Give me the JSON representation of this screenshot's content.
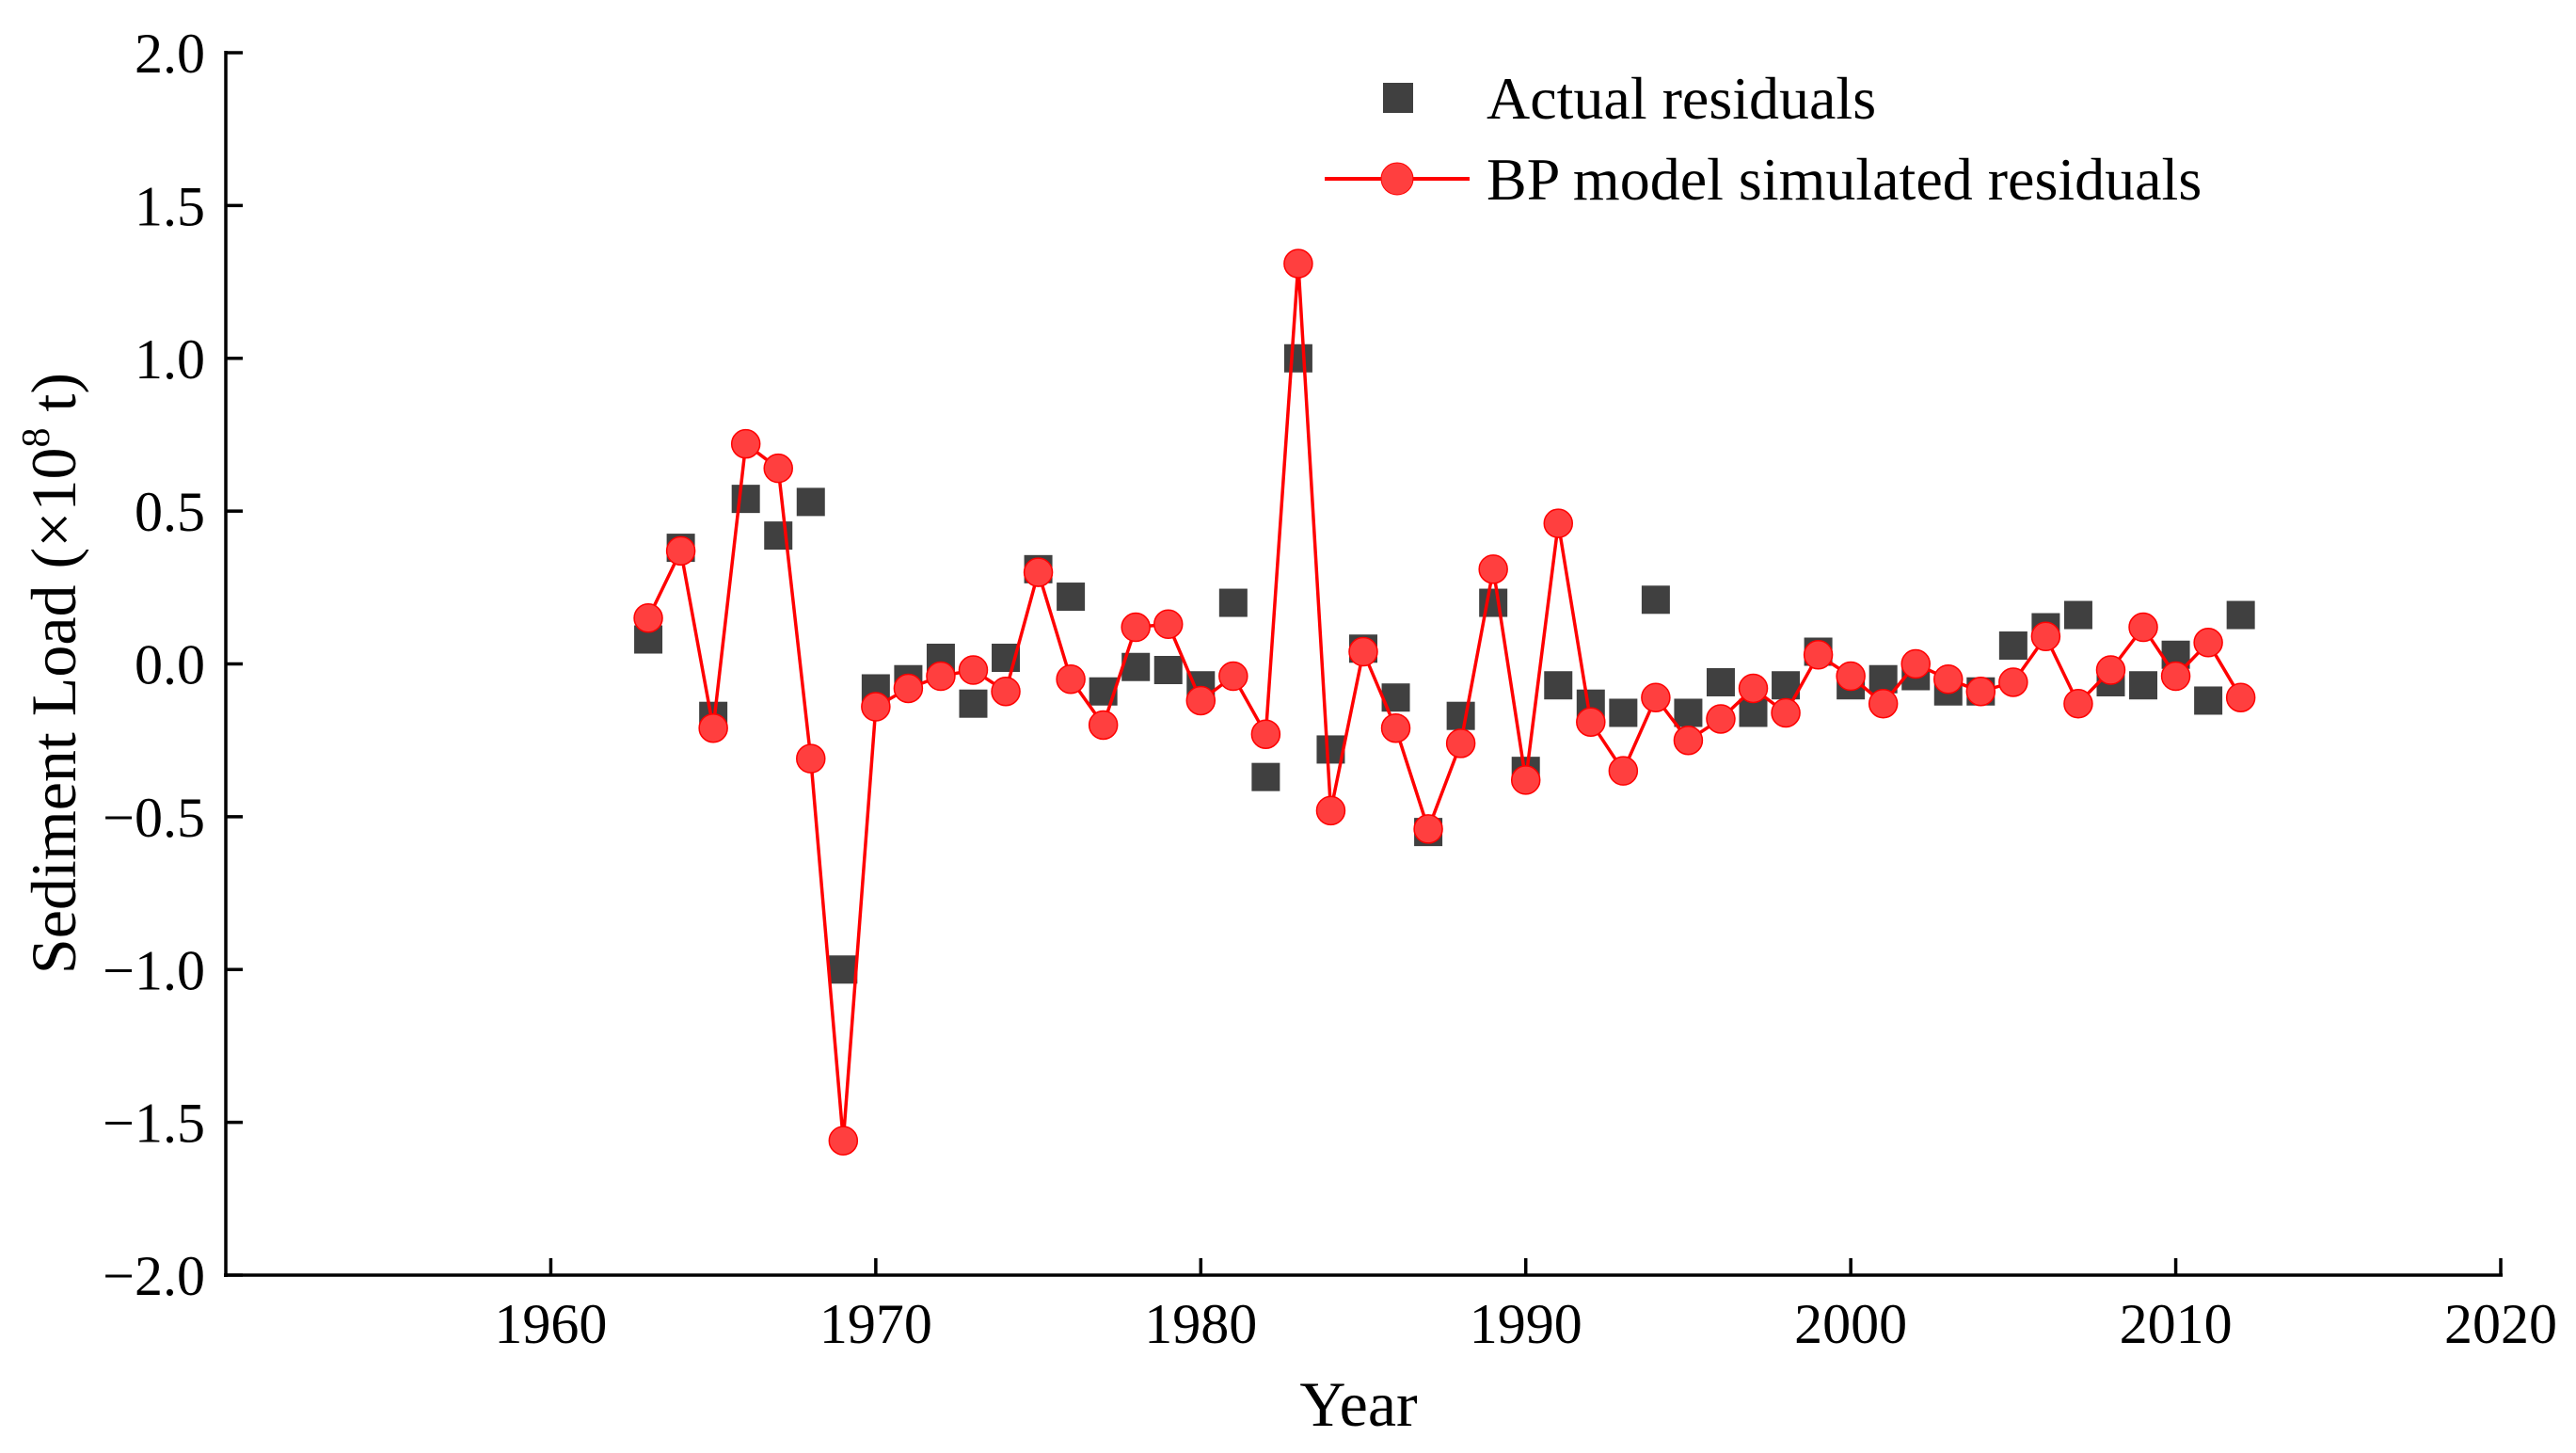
{
  "chart_data": {
    "type": "line",
    "title": "",
    "xlabel": "Year",
    "ylabel": {
      "main": "Sediment Load (×10",
      "exponent": "8",
      "unit": " t)"
    },
    "xlim": [
      1950,
      2020
    ],
    "ylim": [
      -2.0,
      2.0
    ],
    "x_ticks": [
      1960,
      1970,
      1980,
      1990,
      2000,
      2010,
      2020
    ],
    "y_ticks": [
      {
        "value": 2.0,
        "label": "2.0"
      },
      {
        "value": 1.5,
        "label": "1.5"
      },
      {
        "value": 1.0,
        "label": "1.0"
      },
      {
        "value": 0.5,
        "label": "0.5"
      },
      {
        "value": 0.0,
        "label": "0.0"
      },
      {
        "value": -0.5,
        "label": "−0.5"
      },
      {
        "value": -1.0,
        "label": "−1.0"
      },
      {
        "value": -1.5,
        "label": "−1.5"
      },
      {
        "value": -2.0,
        "label": "−2.0"
      }
    ],
    "legend_position": "top-right",
    "series": [
      {
        "name": "Actual residuals",
        "style": "scatter-square",
        "color": "#404040",
        "x": [
          1963,
          1964,
          1965,
          1966,
          1967,
          1968,
          1969,
          1970,
          1971,
          1972,
          1973,
          1974,
          1975,
          1976,
          1977,
          1978,
          1979,
          1980,
          1981,
          1982,
          1983,
          1984,
          1985,
          1986,
          1987,
          1988,
          1989,
          1990,
          1991,
          1992,
          1993,
          1994,
          1995,
          1996,
          1997,
          1998,
          1999,
          2000,
          2001,
          2002,
          2003,
          2004,
          2005,
          2006,
          2007,
          2008,
          2009,
          2010,
          2011,
          2012
        ],
        "values": [
          0.08,
          0.38,
          -0.17,
          0.54,
          0.42,
          0.53,
          -1.0,
          -0.08,
          -0.05,
          0.02,
          -0.13,
          0.02,
          0.31,
          0.22,
          -0.09,
          -0.01,
          -0.02,
          -0.07,
          0.2,
          -0.37,
          1.0,
          -0.28,
          0.05,
          -0.11,
          -0.55,
          -0.17,
          0.2,
          -0.35,
          -0.07,
          -0.13,
          -0.16,
          0.21,
          -0.16,
          -0.06,
          -0.16,
          -0.07,
          0.04,
          -0.07,
          -0.05,
          -0.04,
          -0.09,
          -0.09,
          0.06,
          0.12,
          0.16,
          -0.06,
          -0.07,
          0.03,
          -0.12,
          0.16
        ]
      },
      {
        "name": "BP model simulated residuals",
        "style": "line-circle",
        "color": "#ff0000",
        "marker_color": "#ff3f3f",
        "x": [
          1963,
          1964,
          1965,
          1966,
          1967,
          1968,
          1969,
          1970,
          1971,
          1972,
          1973,
          1974,
          1975,
          1976,
          1977,
          1978,
          1979,
          1980,
          1981,
          1982,
          1983,
          1984,
          1985,
          1986,
          1987,
          1988,
          1989,
          1990,
          1991,
          1992,
          1993,
          1994,
          1995,
          1996,
          1997,
          1998,
          1999,
          2000,
          2001,
          2002,
          2003,
          2004,
          2005,
          2006,
          2007,
          2008,
          2009,
          2010,
          2011,
          2012
        ],
        "values": [
          0.15,
          0.37,
          -0.21,
          0.72,
          0.64,
          -0.31,
          -1.56,
          -0.14,
          -0.08,
          -0.04,
          -0.02,
          -0.09,
          0.3,
          -0.05,
          -0.2,
          0.12,
          0.13,
          -0.12,
          -0.04,
          -0.23,
          1.31,
          -0.48,
          0.04,
          -0.21,
          -0.54,
          -0.26,
          0.31,
          -0.38,
          0.46,
          -0.19,
          -0.35,
          -0.11,
          -0.25,
          -0.18,
          -0.08,
          -0.16,
          0.03,
          -0.04,
          -0.13,
          0.0,
          -0.05,
          -0.09,
          -0.06,
          0.09,
          -0.13,
          -0.02,
          0.12,
          -0.04,
          0.07,
          -0.11
        ]
      }
    ]
  }
}
